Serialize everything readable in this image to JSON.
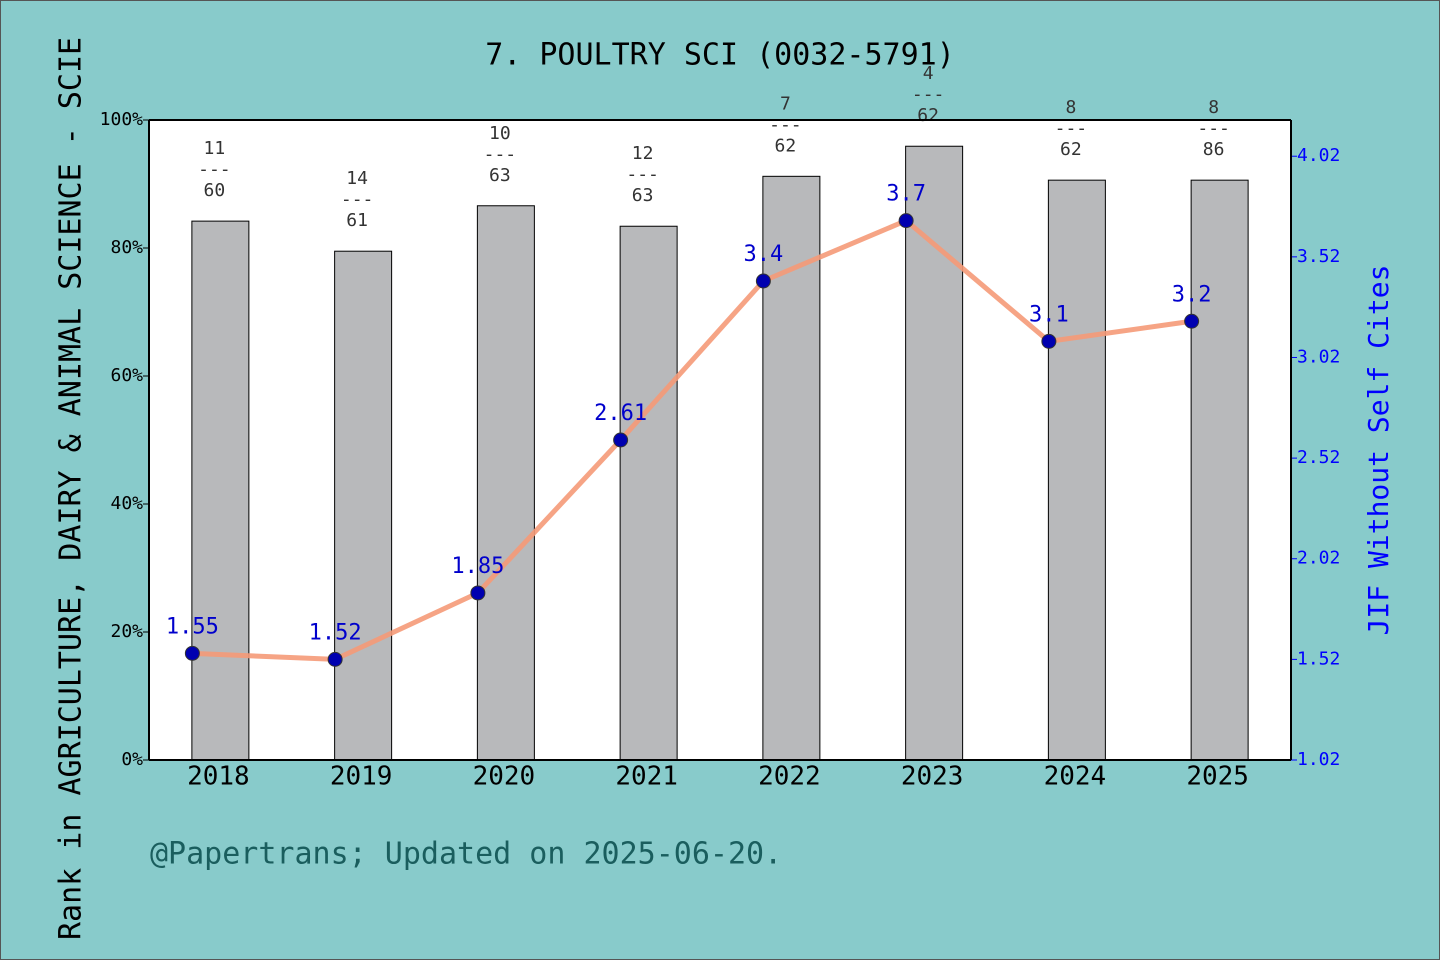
{
  "chart_data": {
    "type": "bar-line",
    "title": "7. POULTRY SCI (0032-5791)",
    "y_label": "Rank in AGRICULTURE, DAIRY & ANIMAL SCIENCE - SCIE",
    "y2_label": "JIF Without Self Cites",
    "footer": "@Papertrans; Updated on 2025-06-20.",
    "categories": [
      "2018",
      "2019",
      "2020",
      "2021",
      "2022",
      "2023",
      "2024",
      "2025"
    ],
    "values": [
      84.2,
      79.5,
      86.6,
      83.4,
      91.2,
      95.9,
      90.6,
      90.6
    ],
    "color": "#b8b9bb",
    "ranks": [
      11,
      14,
      10,
      12,
      7,
      4,
      8,
      8
    ],
    "totals": [
      60,
      61,
      63,
      63,
      62,
      62,
      62,
      86
    ],
    "rank_separator": "---",
    "line": {
      "values": [
        1.55,
        1.52,
        1.85,
        2.61,
        3.4,
        3.7,
        3.1,
        3.2
      ],
      "color": "#f59a78",
      "marker_color": "#0000b0",
      "label_color": "#0000cc",
      "axis": "y2"
    },
    "ylim": [
      0,
      100
    ],
    "yticks": [
      {
        "value": 0,
        "label": "0%"
      },
      {
        "value": 20,
        "label": "20%"
      },
      {
        "value": 40,
        "label": "40%"
      },
      {
        "value": 60,
        "label": "60%"
      },
      {
        "value": 80,
        "label": "80%"
      },
      {
        "value": 100,
        "label": "100%"
      }
    ],
    "y2lim": [
      1.02,
      4.2
    ],
    "y2ticks": [
      1.02,
      1.52,
      2.02,
      2.52,
      3.02,
      3.52,
      4.02
    ]
  }
}
